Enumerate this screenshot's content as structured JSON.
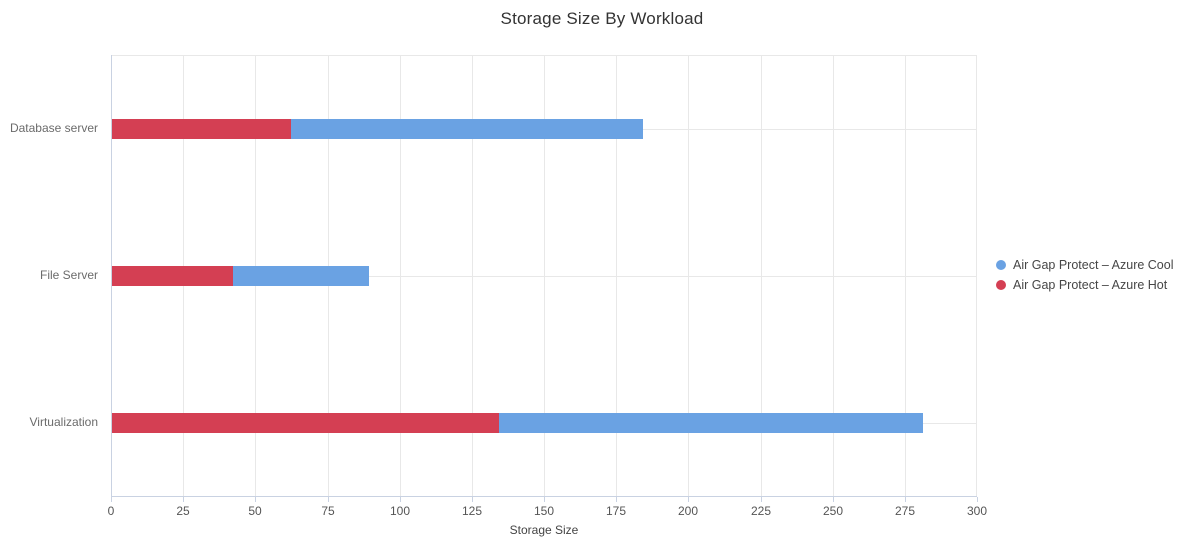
{
  "title": "Storage Size By Workload",
  "chart_data": {
    "type": "bar",
    "orientation": "horizontal",
    "stacked": true,
    "title": "Storage Size By Workload",
    "xlabel": "Storage Size",
    "ylabel": "",
    "xlim": [
      0,
      300
    ],
    "x_ticks": [
      0,
      25,
      50,
      75,
      100,
      125,
      150,
      175,
      200,
      225,
      250,
      275,
      300
    ],
    "categories": [
      "Database server",
      "File Server",
      "Virtualization"
    ],
    "series": [
      {
        "name": "Air Gap Protect – Azure Hot",
        "color": "#d43f53",
        "values": [
          62,
          42,
          134
        ]
      },
      {
        "name": "Air Gap Protect – Azure Cool",
        "color": "#6aa2e3",
        "values": [
          122,
          47,
          147
        ]
      }
    ],
    "grid": true,
    "legend_position": "right",
    "legend": [
      {
        "label": "Air Gap Protect – Azure Cool",
        "color": "#6aa2e3"
      },
      {
        "label": "Air Gap Protect – Azure Hot",
        "color": "#d43f53"
      }
    ]
  },
  "colors": {
    "background": "#ffffff",
    "axis_line": "#c9d2e2",
    "gridline": "#e8e8e8",
    "title_text": "#333333",
    "tick_text": "#555555",
    "category_text": "#6b6b6b",
    "axis_title_text": "#444444",
    "legend_text": "#464646"
  }
}
